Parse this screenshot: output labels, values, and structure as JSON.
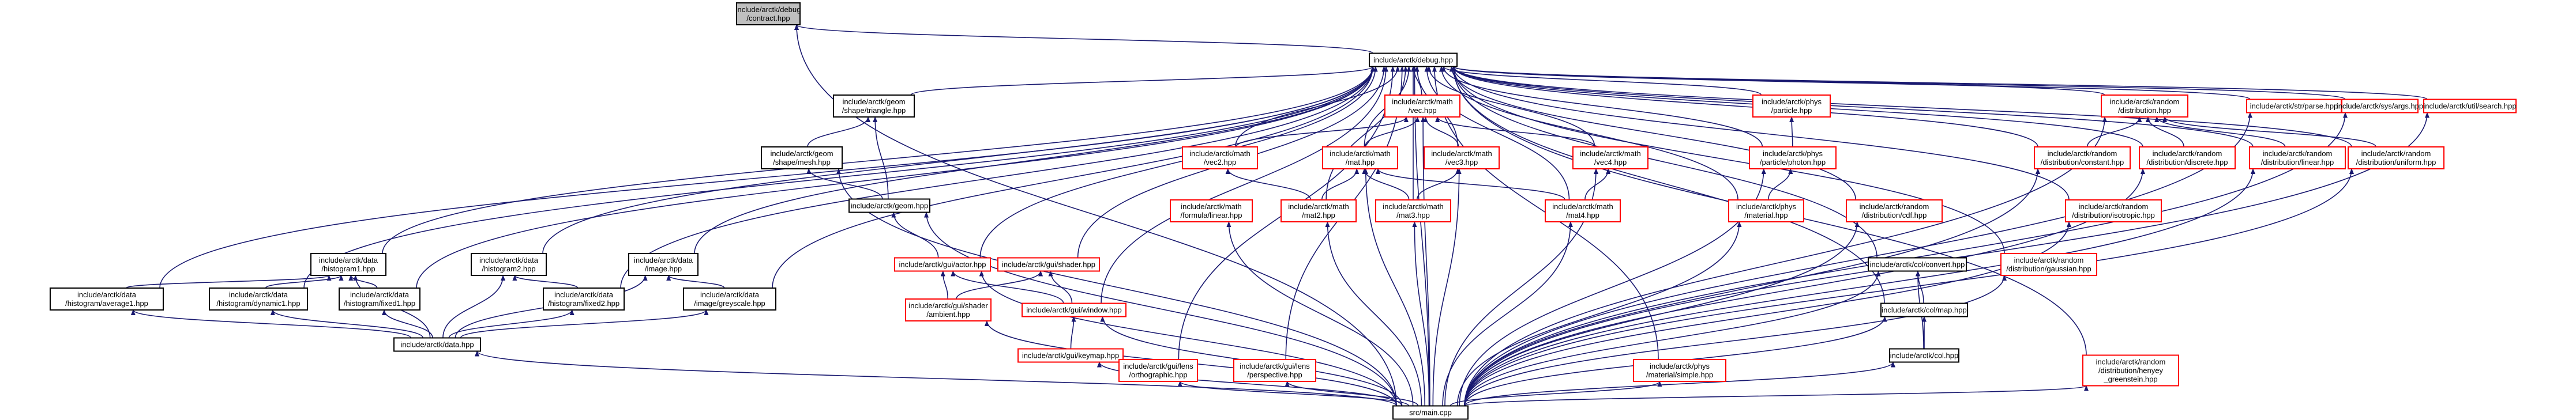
{
  "colors": {
    "edge": "#191970",
    "link_border": "#ff0000",
    "plain_border": "#000000",
    "selected_fill": "#bfbfbf",
    "background": "#ffffff"
  },
  "nodes": [
    {
      "id": "contract",
      "label": [
        "include/arctk/debug",
        "/contract.hpp"
      ],
      "style": "grey"
    },
    {
      "id": "debug",
      "label": [
        "include/arctk/debug.hpp"
      ],
      "style": "black"
    },
    {
      "id": "hist_avg",
      "label": [
        "include/arctk/data",
        "/histogram/average1.hpp"
      ],
      "style": "black"
    },
    {
      "id": "hist1",
      "label": [
        "include/arctk/data",
        "/histogram1.hpp"
      ],
      "style": "black"
    },
    {
      "id": "hist_dyn",
      "label": [
        "include/arctk/data",
        "/histogram/dynamic1.hpp"
      ],
      "style": "black"
    },
    {
      "id": "hist_fix1",
      "label": [
        "include/arctk/data",
        "/histogram/fixed1.hpp"
      ],
      "style": "black"
    },
    {
      "id": "hist2",
      "label": [
        "include/arctk/data",
        "/histogram2.hpp"
      ],
      "style": "black"
    },
    {
      "id": "hist_fix2",
      "label": [
        "include/arctk/data",
        "/histogram/fixed2.hpp"
      ],
      "style": "black"
    },
    {
      "id": "image",
      "label": [
        "include/arctk/data",
        "/image.hpp"
      ],
      "style": "black"
    },
    {
      "id": "grayscale",
      "label": [
        "include/arctk/data",
        "/image/greyscale.hpp"
      ],
      "style": "black"
    },
    {
      "id": "data",
      "label": [
        "include/arctk/data.hpp"
      ],
      "style": "black"
    },
    {
      "id": "triangle",
      "label": [
        "include/arctk/geom",
        "/shape/triangle.hpp"
      ],
      "style": "black"
    },
    {
      "id": "mesh",
      "label": [
        "include/arctk/geom",
        "/shape/mesh.hpp"
      ],
      "style": "black"
    },
    {
      "id": "geom",
      "label": [
        "include/arctk/geom.hpp"
      ],
      "style": "black"
    },
    {
      "id": "shader",
      "label": [
        "include/arctk/gui/shader.hpp"
      ],
      "style": "red"
    },
    {
      "id": "actor",
      "label": [
        "include/arctk/gui/actor.hpp"
      ],
      "style": "red"
    },
    {
      "id": "ambient",
      "label": [
        "include/arctk/gui/shader",
        "/ambient.hpp"
      ],
      "style": "red"
    },
    {
      "id": "window",
      "label": [
        "include/arctk/gui/window.hpp"
      ],
      "style": "red"
    },
    {
      "id": "keymap",
      "label": [
        "include/arctk/gui/keymap.hpp"
      ],
      "style": "red"
    },
    {
      "id": "ortho",
      "label": [
        "include/arctk/gui/lens",
        "/orthographic.hpp"
      ],
      "style": "red"
    },
    {
      "id": "persp",
      "label": [
        "include/arctk/gui/lens",
        "/perspective.hpp"
      ],
      "style": "red"
    },
    {
      "id": "vec",
      "label": [
        "include/arctk/math",
        "/vec.hpp"
      ],
      "style": "red"
    },
    {
      "id": "vec2",
      "label": [
        "include/arctk/math",
        "/vec2.hpp"
      ],
      "style": "red"
    },
    {
      "id": "formula",
      "label": [
        "include/arctk/math",
        "/formula/linear.hpp"
      ],
      "style": "red"
    },
    {
      "id": "mat",
      "label": [
        "include/arctk/math",
        "/mat.hpp"
      ],
      "style": "red"
    },
    {
      "id": "vec3",
      "label": [
        "include/arctk/math",
        "/vec3.hpp"
      ],
      "style": "red"
    },
    {
      "id": "vec4",
      "label": [
        "include/arctk/math",
        "/vec4.hpp"
      ],
      "style": "red"
    },
    {
      "id": "mat2",
      "label": [
        "include/arctk/math",
        "/mat2.hpp"
      ],
      "style": "red"
    },
    {
      "id": "mat3",
      "label": [
        "include/arctk/math",
        "/mat3.hpp"
      ],
      "style": "red"
    },
    {
      "id": "mat4",
      "label": [
        "include/arctk/math",
        "/mat4.hpp"
      ],
      "style": "red"
    },
    {
      "id": "particle",
      "label": [
        "include/arctk/phys",
        "/particle.hpp"
      ],
      "style": "red"
    },
    {
      "id": "photon",
      "label": [
        "include/arctk/phys",
        "/particle/photon.hpp"
      ],
      "style": "red"
    },
    {
      "id": "material",
      "label": [
        "include/arctk/phys",
        "/material.hpp"
      ],
      "style": "red"
    },
    {
      "id": "matsimple",
      "label": [
        "include/arctk/phys",
        "/material/simple.hpp"
      ],
      "style": "red"
    },
    {
      "id": "distribution",
      "label": [
        "include/arctk/random",
        "/distribution.hpp"
      ],
      "style": "red"
    },
    {
      "id": "constant",
      "label": [
        "include/arctk/random",
        "/distribution/constant.hpp"
      ],
      "style": "red"
    },
    {
      "id": "discrete",
      "label": [
        "include/arctk/random",
        "/distribution/discrete.hpp"
      ],
      "style": "red"
    },
    {
      "id": "linear",
      "label": [
        "include/arctk/random",
        "/distribution/linear.hpp"
      ],
      "style": "red"
    },
    {
      "id": "uniform",
      "label": [
        "include/arctk/random",
        "/distribution/uniform.hpp"
      ],
      "style": "red"
    },
    {
      "id": "cdf",
      "label": [
        "include/arctk/random",
        "/distribution/cdf.hpp"
      ],
      "style": "red"
    },
    {
      "id": "isotropic",
      "label": [
        "include/arctk/random",
        "/distribution/isotropic.hpp"
      ],
      "style": "red"
    },
    {
      "id": "gaussian",
      "label": [
        "include/arctk/random",
        "/distribution/gaussian.hpp"
      ],
      "style": "red"
    },
    {
      "id": "henyey",
      "label": [
        "include/arctk/random",
        "/distribution/henyey",
        "_greenstein.hpp"
      ],
      "style": "red"
    },
    {
      "id": "convert",
      "label": [
        "include/arctk/col/convert.hpp"
      ],
      "style": "black"
    },
    {
      "id": "colmap",
      "label": [
        "include/arctk/col/map.hpp"
      ],
      "style": "black"
    },
    {
      "id": "col",
      "label": [
        "include/arctk/col.hpp"
      ],
      "style": "black"
    },
    {
      "id": "parse",
      "label": [
        "include/arctk/str/parse.hpp"
      ],
      "style": "red"
    },
    {
      "id": "args",
      "label": [
        "include/arctk/sys/args.hpp"
      ],
      "style": "red"
    },
    {
      "id": "search",
      "label": [
        "include/arctk/util/search.hpp"
      ],
      "style": "red"
    },
    {
      "id": "main",
      "label": [
        "src/main.cpp"
      ],
      "style": "black"
    }
  ],
  "edges": [
    [
      "debug",
      "contract"
    ],
    [
      "main",
      "contract"
    ],
    [
      "hist_avg",
      "debug"
    ],
    [
      "hist1",
      "debug"
    ],
    [
      "hist_dyn",
      "debug"
    ],
    [
      "hist_fix1",
      "debug"
    ],
    [
      "hist2",
      "debug"
    ],
    [
      "hist_fix2",
      "debug"
    ],
    [
      "image",
      "debug"
    ],
    [
      "grayscale",
      "debug"
    ],
    [
      "triangle",
      "debug"
    ],
    [
      "actor",
      "debug"
    ],
    [
      "shader",
      "debug"
    ],
    [
      "window",
      "debug"
    ],
    [
      "ortho",
      "debug"
    ],
    [
      "persp",
      "debug"
    ],
    [
      "vec",
      "debug"
    ],
    [
      "vec2",
      "debug"
    ],
    [
      "mat",
      "debug"
    ],
    [
      "vec3",
      "debug"
    ],
    [
      "vec4",
      "debug"
    ],
    [
      "mat2",
      "debug"
    ],
    [
      "mat3",
      "debug"
    ],
    [
      "mat4",
      "debug"
    ],
    [
      "particle",
      "debug"
    ],
    [
      "photon",
      "debug"
    ],
    [
      "material",
      "debug"
    ],
    [
      "matsimple",
      "debug"
    ],
    [
      "cdf",
      "debug"
    ],
    [
      "isotropic",
      "debug"
    ],
    [
      "gaussian",
      "debug"
    ],
    [
      "henyey",
      "debug"
    ],
    [
      "convert",
      "debug"
    ],
    [
      "colmap",
      "debug"
    ],
    [
      "distribution",
      "debug"
    ],
    [
      "constant",
      "debug"
    ],
    [
      "discrete",
      "debug"
    ],
    [
      "linear",
      "debug"
    ],
    [
      "uniform",
      "debug"
    ],
    [
      "parse",
      "debug"
    ],
    [
      "args",
      "debug"
    ],
    [
      "search",
      "debug"
    ],
    [
      "main",
      "debug"
    ],
    [
      "hist_avg",
      "hist1"
    ],
    [
      "hist_dyn",
      "hist1"
    ],
    [
      "hist_fix1",
      "hist1"
    ],
    [
      "data",
      "hist1"
    ],
    [
      "hist_fix2",
      "hist2"
    ],
    [
      "data",
      "hist2"
    ],
    [
      "grayscale",
      "image"
    ],
    [
      "data",
      "image"
    ],
    [
      "data",
      "hist_avg"
    ],
    [
      "data",
      "hist_dyn"
    ],
    [
      "data",
      "hist_fix1"
    ],
    [
      "data",
      "hist_fix2"
    ],
    [
      "data",
      "grayscale"
    ],
    [
      "main",
      "data"
    ],
    [
      "mesh",
      "triangle"
    ],
    [
      "geom",
      "triangle"
    ],
    [
      "geom",
      "mesh"
    ],
    [
      "main",
      "mesh"
    ],
    [
      "actor",
      "geom"
    ],
    [
      "main",
      "geom"
    ],
    [
      "ambient",
      "shader"
    ],
    [
      "window",
      "shader"
    ],
    [
      "ambient",
      "actor"
    ],
    [
      "window",
      "actor"
    ],
    [
      "main",
      "actor"
    ],
    [
      "main",
      "ambient"
    ],
    [
      "keymap",
      "window"
    ],
    [
      "main",
      "window"
    ],
    [
      "main",
      "keymap"
    ],
    [
      "main",
      "ortho"
    ],
    [
      "main",
      "persp"
    ],
    [
      "vec2",
      "vec"
    ],
    [
      "mat",
      "vec"
    ],
    [
      "vec3",
      "vec"
    ],
    [
      "vec4",
      "vec"
    ],
    [
      "main",
      "vec"
    ],
    [
      "mat2",
      "vec2"
    ],
    [
      "mat2",
      "mat"
    ],
    [
      "mat3",
      "mat"
    ],
    [
      "mat4",
      "mat"
    ],
    [
      "main",
      "mat"
    ],
    [
      "mat3",
      "vec3"
    ],
    [
      "main",
      "vec3"
    ],
    [
      "mat4",
      "vec4"
    ],
    [
      "main",
      "vec4"
    ],
    [
      "main",
      "mat2"
    ],
    [
      "main",
      "mat3"
    ],
    [
      "main",
      "mat4"
    ],
    [
      "main",
      "formula"
    ],
    [
      "photon",
      "particle"
    ],
    [
      "material",
      "photon"
    ],
    [
      "main",
      "photon"
    ],
    [
      "main",
      "material"
    ],
    [
      "main",
      "matsimple"
    ],
    [
      "constant",
      "distribution"
    ],
    [
      "discrete",
      "distribution"
    ],
    [
      "linear",
      "distribution"
    ],
    [
      "uniform",
      "distribution"
    ],
    [
      "main",
      "distribution"
    ],
    [
      "main",
      "constant"
    ],
    [
      "main",
      "discrete"
    ],
    [
      "main",
      "linear"
    ],
    [
      "main",
      "uniform"
    ],
    [
      "main",
      "cdf"
    ],
    [
      "main",
      "isotropic"
    ],
    [
      "main",
      "gaussian"
    ],
    [
      "main",
      "henyey"
    ],
    [
      "colmap",
      "convert"
    ],
    [
      "col",
      "convert"
    ],
    [
      "main",
      "convert"
    ],
    [
      "col",
      "colmap"
    ],
    [
      "main",
      "colmap"
    ],
    [
      "main",
      "col"
    ],
    [
      "main",
      "parse"
    ],
    [
      "main",
      "args"
    ],
    [
      "main",
      "search"
    ]
  ]
}
